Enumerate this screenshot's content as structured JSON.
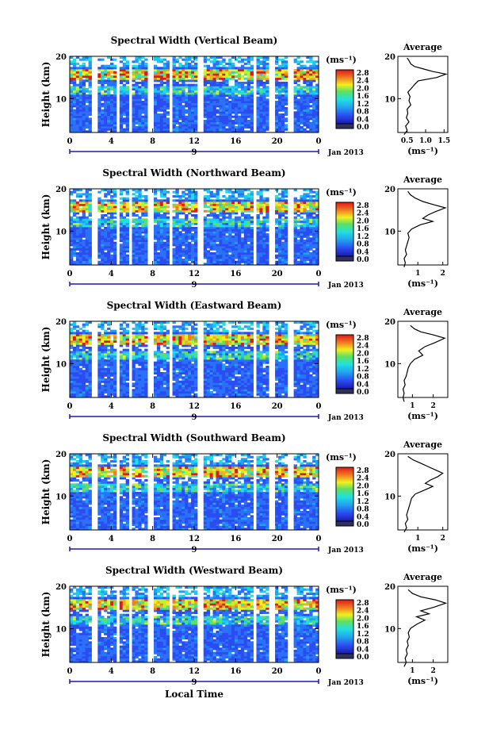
{
  "panels": [
    {
      "title": "Spectral Width (Vertical Beam)",
      "avg_xticks": [
        "0.5",
        "1.0",
        "1.5"
      ],
      "avg_xvals": [
        0.5,
        1.0,
        1.5
      ],
      "avg_xrange": [
        0.25,
        1.6
      ],
      "avg_profile": [
        [
          0.42,
          1.5
        ],
        [
          0.5,
          2.5
        ],
        [
          0.46,
          3.5
        ],
        [
          0.55,
          4.5
        ],
        [
          0.48,
          5.5
        ],
        [
          0.52,
          6.5
        ],
        [
          0.5,
          7.5
        ],
        [
          0.6,
          8.5
        ],
        [
          0.55,
          9.5
        ],
        [
          0.58,
          10.5
        ],
        [
          0.52,
          11.5
        ],
        [
          0.62,
          12.5
        ],
        [
          0.72,
          13.5
        ],
        [
          0.8,
          14.2
        ],
        [
          1.3,
          15.0
        ],
        [
          1.55,
          15.8
        ],
        [
          1.2,
          16.4
        ],
        [
          0.95,
          17.0
        ],
        [
          0.7,
          17.6
        ],
        [
          0.6,
          18.2
        ],
        [
          0.55,
          19.0
        ],
        [
          0.5,
          19.6
        ]
      ]
    },
    {
      "title": "Spectral Width (Northward Beam)",
      "avg_xticks": [
        "1",
        "2"
      ],
      "avg_xvals": [
        1,
        2
      ],
      "avg_xrange": [
        0.2,
        2.2
      ],
      "avg_profile": [
        [
          0.45,
          1.5
        ],
        [
          0.5,
          2.5
        ],
        [
          0.45,
          3.5
        ],
        [
          0.55,
          4.5
        ],
        [
          0.5,
          5.5
        ],
        [
          0.55,
          6.5
        ],
        [
          0.6,
          7.5
        ],
        [
          0.65,
          8.5
        ],
        [
          0.6,
          9.5
        ],
        [
          0.75,
          10.5
        ],
        [
          1.1,
          11.5
        ],
        [
          1.6,
          12.3
        ],
        [
          1.2,
          13.0
        ],
        [
          1.4,
          13.8
        ],
        [
          1.7,
          14.6
        ],
        [
          2.1,
          15.5
        ],
        [
          1.6,
          16.3
        ],
        [
          1.2,
          17.0
        ],
        [
          0.9,
          17.8
        ],
        [
          0.7,
          18.6
        ],
        [
          0.6,
          19.4
        ]
      ]
    },
    {
      "title": "Spectral Width (Eastward Beam)",
      "avg_xticks": [
        "1",
        "2"
      ],
      "avg_xvals": [
        1,
        2
      ],
      "avg_xrange": [
        0.3,
        2.7
      ],
      "avg_profile": [
        [
          0.6,
          1.0
        ],
        [
          0.55,
          2.0
        ],
        [
          0.6,
          3.0
        ],
        [
          0.55,
          4.0
        ],
        [
          0.65,
          5.0
        ],
        [
          0.6,
          6.0
        ],
        [
          0.7,
          7.0
        ],
        [
          0.75,
          8.0
        ],
        [
          0.8,
          9.0
        ],
        [
          0.9,
          10.0
        ],
        [
          1.1,
          11.0
        ],
        [
          1.5,
          12.0
        ],
        [
          1.3,
          13.0
        ],
        [
          1.6,
          14.0
        ],
        [
          2.1,
          15.0
        ],
        [
          2.55,
          16.0
        ],
        [
          2.0,
          16.8
        ],
        [
          1.4,
          17.5
        ],
        [
          1.1,
          18.2
        ],
        [
          0.9,
          19.0
        ]
      ]
    },
    {
      "title": "Spectral Width (Southward Beam)",
      "avg_xticks": [
        "1",
        "2"
      ],
      "avg_xvals": [
        1,
        2
      ],
      "avg_xrange": [
        0.2,
        2.2
      ],
      "avg_profile": [
        [
          0.45,
          1.5
        ],
        [
          0.55,
          2.5
        ],
        [
          0.5,
          3.5
        ],
        [
          0.6,
          4.5
        ],
        [
          0.55,
          5.5
        ],
        [
          0.6,
          6.5
        ],
        [
          0.65,
          7.5
        ],
        [
          0.7,
          8.5
        ],
        [
          0.75,
          9.5
        ],
        [
          0.9,
          10.5
        ],
        [
          1.3,
          11.5
        ],
        [
          1.6,
          12.3
        ],
        [
          1.3,
          13.0
        ],
        [
          1.5,
          13.8
        ],
        [
          1.8,
          14.6
        ],
        [
          2.0,
          15.4
        ],
        [
          1.7,
          16.2
        ],
        [
          1.4,
          17.0
        ],
        [
          1.1,
          17.8
        ],
        [
          0.8,
          18.6
        ],
        [
          0.6,
          19.4
        ]
      ]
    },
    {
      "title": "Spectral Width (Westward Beam)",
      "avg_xticks": [
        "1",
        "2"
      ],
      "avg_xvals": [
        1,
        2
      ],
      "avg_xrange": [
        0.3,
        2.7
      ],
      "avg_profile": [
        [
          0.6,
          1.0
        ],
        [
          0.7,
          2.0
        ],
        [
          0.65,
          3.0
        ],
        [
          0.75,
          4.0
        ],
        [
          0.7,
          5.0
        ],
        [
          0.8,
          6.0
        ],
        [
          0.75,
          7.0
        ],
        [
          0.85,
          8.0
        ],
        [
          0.8,
          9.0
        ],
        [
          0.9,
          10.0
        ],
        [
          1.2,
          11.0
        ],
        [
          1.6,
          12.0
        ],
        [
          1.2,
          12.8
        ],
        [
          1.8,
          13.5
        ],
        [
          1.4,
          14.2
        ],
        [
          2.0,
          15.0
        ],
        [
          2.6,
          16.0
        ],
        [
          2.1,
          16.8
        ],
        [
          1.4,
          17.5
        ],
        [
          1.0,
          18.3
        ],
        [
          0.8,
          19.2
        ]
      ]
    }
  ],
  "ylabel": "Height (km)",
  "yticks": [
    "20",
    "10"
  ],
  "xticks": [
    "0",
    "4",
    "8",
    "12",
    "16",
    "20",
    "0"
  ],
  "date_marker": "9",
  "date_label": "Jan 2013",
  "xlabel": "Local Time",
  "colorbar_unit": "(ms⁻¹)",
  "colorbar_ticks": [
    "2.8",
    "2.4",
    "2.0",
    "1.6",
    "1.2",
    "0.8",
    "0.4",
    "0.0"
  ],
  "avg_title": "Average",
  "avg_xlabel": "(ms⁻¹)",
  "avg_yticks": [
    "20",
    "10"
  ],
  "chart_data": [
    {
      "type": "heatmap",
      "title": "Spectral Width (Vertical Beam)",
      "xlabel": "",
      "ylabel": "Height (km)",
      "xlim": [
        0,
        24
      ],
      "ylim": [
        2,
        20
      ],
      "zlim": [
        0.0,
        2.8
      ],
      "date": "9 Jan 2013",
      "colorbar_label": "(ms⁻¹)"
    },
    {
      "type": "line",
      "title": "Average",
      "xlabel": "(ms⁻¹)",
      "ylim": [
        2,
        20
      ],
      "xticks": [
        0.5,
        1.0,
        1.5
      ]
    },
    {
      "type": "heatmap",
      "title": "Spectral Width (Northward Beam)",
      "ylabel": "Height (km)",
      "xlim": [
        0,
        24
      ],
      "ylim": [
        2,
        20
      ],
      "zlim": [
        0.0,
        2.8
      ]
    },
    {
      "type": "line",
      "title": "Average",
      "xlabel": "(ms⁻¹)",
      "ylim": [
        2,
        20
      ],
      "xticks": [
        1,
        2
      ]
    },
    {
      "type": "heatmap",
      "title": "Spectral Width (Eastward Beam)",
      "ylabel": "Height (km)",
      "xlim": [
        0,
        24
      ],
      "ylim": [
        2,
        20
      ],
      "zlim": [
        0.0,
        2.8
      ]
    },
    {
      "type": "line",
      "title": "Average",
      "xlabel": "(ms⁻¹)",
      "ylim": [
        2,
        20
      ],
      "xticks": [
        1,
        2
      ]
    },
    {
      "type": "heatmap",
      "title": "Spectral Width (Southward Beam)",
      "ylabel": "Height (km)",
      "xlim": [
        0,
        24
      ],
      "ylim": [
        2,
        20
      ],
      "zlim": [
        0.0,
        2.8
      ]
    },
    {
      "type": "line",
      "title": "Average",
      "xlabel": "(ms⁻¹)",
      "ylim": [
        2,
        20
      ],
      "xticks": [
        1,
        2
      ]
    },
    {
      "type": "heatmap",
      "title": "Spectral Width (Westward Beam)",
      "ylabel": "Height (km)",
      "xlim": [
        0,
        24
      ],
      "ylim": [
        2,
        20
      ],
      "zlim": [
        0.0,
        2.8
      ],
      "xlabel": "Local Time"
    },
    {
      "type": "line",
      "title": "Average",
      "xlabel": "(ms⁻¹)",
      "ylim": [
        2,
        20
      ],
      "xticks": [
        1,
        2
      ]
    }
  ]
}
